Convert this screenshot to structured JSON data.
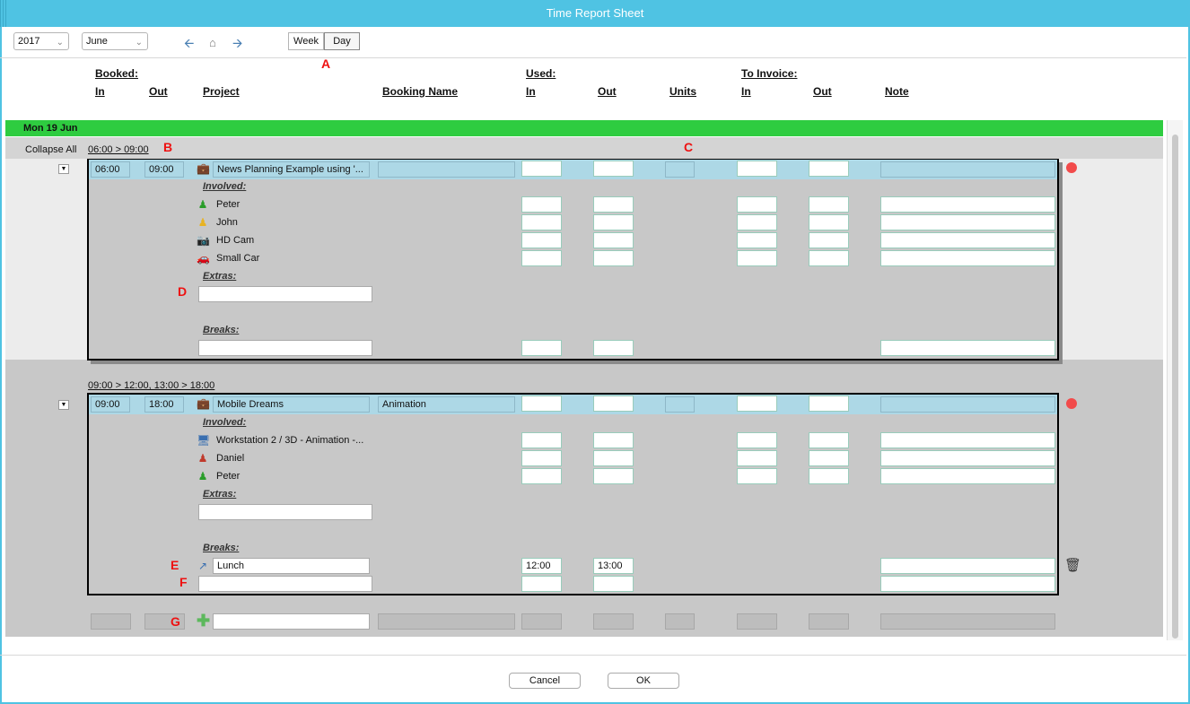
{
  "window": {
    "title": "Time Report Sheet"
  },
  "toolbar": {
    "year": "2017",
    "month": "June",
    "back_icon": "arrow-left-icon",
    "home_icon": "home-icon",
    "forward_icon": "arrow-right-icon",
    "view_week": "Week",
    "view_day": "Day",
    "selected_view": "Day"
  },
  "headers": {
    "booked": "Booked:",
    "used": "Used:",
    "to_invoice": "To Invoice:",
    "in": "In",
    "out": "Out",
    "project": "Project",
    "booking_name": "Booking Name",
    "units": "Units",
    "note": "Note"
  },
  "annotations": {
    "a": "A",
    "b": "B",
    "c": "C",
    "d": "D",
    "e": "E",
    "f": "F",
    "g": "G"
  },
  "day": {
    "label": "Mon 19 Jun",
    "collapse_all": "Collapse All",
    "bookings": [
      {
        "range": "06:00 > 09:00",
        "in": "06:00",
        "out": "09:00",
        "project": "News Planning Example using '...",
        "booking_name": "",
        "involved_label": "Involved:",
        "involved": [
          {
            "name": "Peter",
            "icon": "person-green-icon"
          },
          {
            "name": "John",
            "icon": "person-yellow-icon"
          },
          {
            "name": "HD Cam",
            "icon": "camera-icon"
          },
          {
            "name": "Small Car",
            "icon": "car-icon"
          }
        ],
        "extras_label": "Extras:",
        "breaks_label": "Breaks:"
      },
      {
        "range": "09:00 > 12:00, 13:00 > 18:00",
        "in": "09:00",
        "out": "18:00",
        "project": "Mobile Dreams",
        "booking_name": "Animation",
        "involved_label": "Involved:",
        "involved": [
          {
            "name": "Workstation 2 / 3D - Animation -...",
            "icon": "workstation-icon"
          },
          {
            "name": "Daniel",
            "icon": "person-red-icon"
          },
          {
            "name": "Peter",
            "icon": "person-green-icon"
          }
        ],
        "extras_label": "Extras:",
        "breaks_label": "Breaks:",
        "breaks": [
          {
            "name": "Lunch",
            "in": "12:00",
            "out": "13:00"
          }
        ]
      }
    ]
  },
  "footer": {
    "cancel": "Cancel",
    "ok": "OK"
  }
}
